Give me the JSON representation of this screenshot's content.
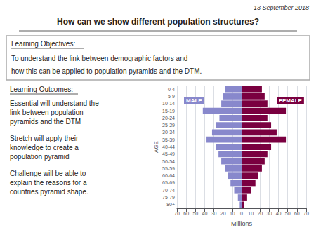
{
  "chart_data": {
    "type": "bar",
    "orientation": "horizontal",
    "title": "How can we show different population structures?",
    "annotations": [
      "13 September 2018",
      "Learning Objectives:",
      "To understand the link between demographic factors and",
      "how this can be applied to population pyramids and the DTM.",
      "Learning Outcomes:",
      "Essential will understand the\nlink between population\npyramids and the DTM",
      "Stretch will apply their\nknowledge to create a\npopulation pyramid",
      "Challenge will be able to\nexplain the reasons for a\ncountries pyramid shape."
    ],
    "xlabel": "Millions",
    "ylabel": "AGE",
    "categories": [
      "80+",
      "75-79",
      "70-74",
      "65-69",
      "60-64",
      "55-59",
      "50-54",
      "45-49",
      "40-44",
      "35-39",
      "30-34",
      "25-29",
      "20-24",
      "15-19",
      "10-14",
      "5-9",
      "0-4"
    ],
    "series": [
      {
        "name": "MALE",
        "color": "#8888cc",
        "values": [
          2,
          4,
          8,
          12,
          15,
          18,
          22,
          25,
          28,
          38,
          32,
          28,
          24,
          42,
          22,
          20,
          18
        ]
      },
      {
        "name": "FEMALE",
        "color": "#7a0040",
        "values": [
          3,
          6,
          10,
          15,
          18,
          22,
          25,
          28,
          32,
          48,
          38,
          32,
          28,
          48,
          28,
          25,
          22
        ]
      }
    ],
    "xlim": [
      0,
      70
    ],
    "xticks": [
      0,
      10,
      20,
      30,
      40,
      50,
      60,
      70
    ],
    "grid": true
  }
}
